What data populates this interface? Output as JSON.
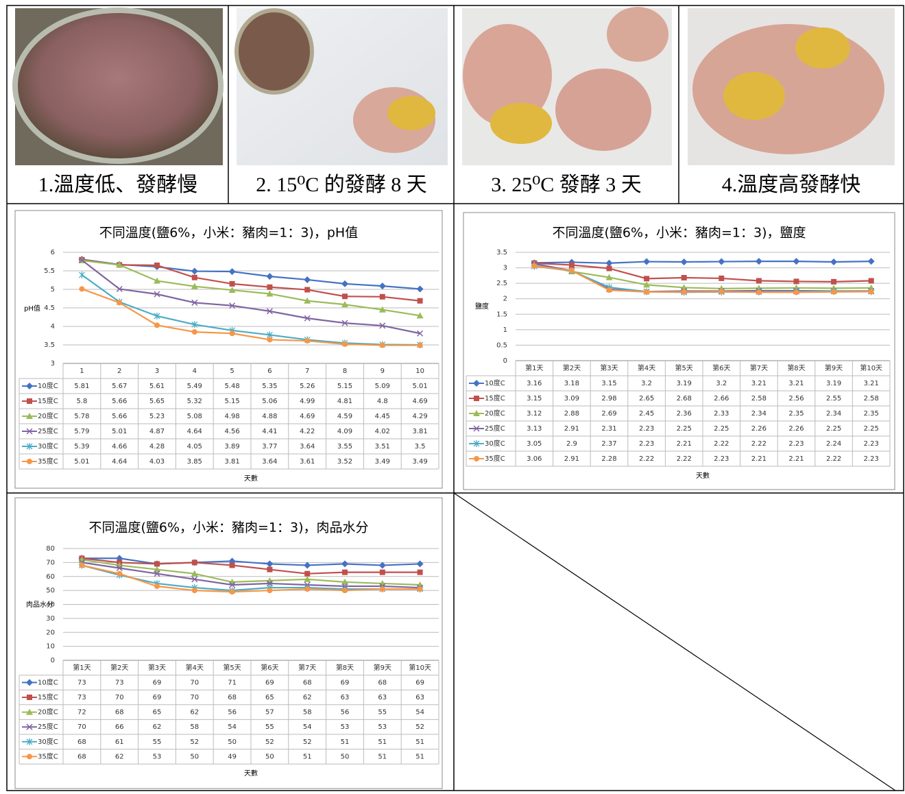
{
  "photos": [
    {
      "caption": "1.溫度低、發酵慢"
    },
    {
      "caption": "2. 15⁰C 的發酵 8 天"
    },
    {
      "caption": "3. 25⁰C 發酵 3 天"
    },
    {
      "caption": "4.溫度高發酵快"
    }
  ],
  "chart_data": [
    {
      "type": "line",
      "title": "不同溫度(鹽6%，小米：豬肉=1：3)，pH值",
      "y_label": "pH值",
      "x_label": "天數",
      "categories": [
        "1",
        "2",
        "3",
        "4",
        "5",
        "6",
        "7",
        "8",
        "9",
        "10"
      ],
      "ylim": [
        3,
        6
      ],
      "yticks": [
        3,
        3.5,
        4,
        4.5,
        5,
        5.5,
        6
      ],
      "grid": true,
      "series": [
        {
          "name": "10度C",
          "color": "#4472c4",
          "marker": "diamond",
          "values": [
            5.81,
            5.67,
            5.61,
            5.49,
            5.48,
            5.35,
            5.26,
            5.15,
            5.09,
            5.01
          ]
        },
        {
          "name": "15度C",
          "color": "#c0504d",
          "marker": "square",
          "values": [
            5.8,
            5.66,
            5.65,
            5.32,
            5.15,
            5.06,
            4.99,
            4.81,
            4.8,
            4.69
          ]
        },
        {
          "name": "20度C",
          "color": "#9bbb59",
          "marker": "triangle",
          "values": [
            5.78,
            5.66,
            5.23,
            5.08,
            4.98,
            4.88,
            4.69,
            4.59,
            4.45,
            4.29
          ]
        },
        {
          "name": "25度C",
          "color": "#8064a2",
          "marker": "x",
          "values": [
            5.79,
            5.01,
            4.87,
            4.64,
            4.56,
            4.41,
            4.22,
            4.09,
            4.02,
            3.81
          ]
        },
        {
          "name": "30度C",
          "color": "#4bacc6",
          "marker": "asterisk",
          "values": [
            5.39,
            4.66,
            4.28,
            4.05,
            3.89,
            3.77,
            3.64,
            3.55,
            3.51,
            3.5
          ]
        },
        {
          "name": "35度C",
          "color": "#f79646",
          "marker": "circle",
          "values": [
            5.01,
            4.64,
            4.03,
            3.85,
            3.81,
            3.64,
            3.61,
            3.52,
            3.49,
            3.49
          ]
        }
      ]
    },
    {
      "type": "line",
      "title": "不同溫度(鹽6%，小米：豬肉=1：3)，鹽度",
      "y_label": "鹽度",
      "x_label": "天數",
      "categories": [
        "第1天",
        "第2天",
        "第3天",
        "第4天",
        "第5天",
        "第6天",
        "第7天",
        "第8天",
        "第9天",
        "第10天"
      ],
      "ylim": [
        0,
        3.5
      ],
      "yticks": [
        0,
        0.5,
        1,
        1.5,
        2,
        2.5,
        3,
        3.5
      ],
      "grid": true,
      "series": [
        {
          "name": "10度C",
          "color": "#4472c4",
          "marker": "diamond",
          "values": [
            3.16,
            3.18,
            3.15,
            3.2,
            3.19,
            3.2,
            3.21,
            3.21,
            3.19,
            3.21
          ]
        },
        {
          "name": "15度C",
          "color": "#c0504d",
          "marker": "square",
          "values": [
            3.15,
            3.09,
            2.98,
            2.65,
            2.68,
            2.66,
            2.58,
            2.56,
            2.55,
            2.58
          ]
        },
        {
          "name": "20度C",
          "color": "#9bbb59",
          "marker": "triangle",
          "values": [
            3.12,
            2.88,
            2.69,
            2.45,
            2.36,
            2.33,
            2.34,
            2.35,
            2.34,
            2.35
          ]
        },
        {
          "name": "25度C",
          "color": "#8064a2",
          "marker": "x",
          "values": [
            3.13,
            2.91,
            2.31,
            2.23,
            2.25,
            2.25,
            2.26,
            2.26,
            2.25,
            2.25
          ]
        },
        {
          "name": "30度C",
          "color": "#4bacc6",
          "marker": "asterisk",
          "values": [
            3.05,
            2.9,
            2.37,
            2.23,
            2.21,
            2.22,
            2.22,
            2.23,
            2.24,
            2.23
          ]
        },
        {
          "name": "35度C",
          "color": "#f79646",
          "marker": "circle",
          "values": [
            3.06,
            2.91,
            2.28,
            2.22,
            2.22,
            2.23,
            2.21,
            2.21,
            2.22,
            2.23
          ]
        }
      ]
    },
    {
      "type": "line",
      "title": "不同溫度(鹽6%，小米：豬肉=1：3)，肉品水分",
      "y_label": "肉品水分",
      "x_label": "天數",
      "categories": [
        "第1天",
        "第2天",
        "第3天",
        "第4天",
        "第5天",
        "第6天",
        "第7天",
        "第8天",
        "第9天",
        "第10天"
      ],
      "ylim": [
        0,
        80
      ],
      "yticks": [
        0,
        10,
        20,
        30,
        40,
        50,
        60,
        70,
        80
      ],
      "grid": true,
      "series": [
        {
          "name": "10度C",
          "color": "#4472c4",
          "marker": "diamond",
          "values": [
            73,
            73,
            69,
            70,
            71,
            69,
            68,
            69,
            68,
            69
          ]
        },
        {
          "name": "15度C",
          "color": "#c0504d",
          "marker": "square",
          "values": [
            73,
            70,
            69,
            70,
            68,
            65,
            62,
            63,
            63,
            63
          ]
        },
        {
          "name": "20度C",
          "color": "#9bbb59",
          "marker": "triangle",
          "values": [
            72,
            68,
            65,
            62,
            56,
            57,
            58,
            56,
            55,
            54
          ]
        },
        {
          "name": "25度C",
          "color": "#8064a2",
          "marker": "x",
          "values": [
            70,
            66,
            62,
            58,
            54,
            55,
            54,
            53,
            53,
            52
          ]
        },
        {
          "name": "30度C",
          "color": "#4bacc6",
          "marker": "asterisk",
          "values": [
            68,
            61,
            55,
            52,
            50,
            52,
            52,
            51,
            51,
            51
          ]
        },
        {
          "name": "35度C",
          "color": "#f79646",
          "marker": "circle",
          "values": [
            68,
            62,
            53,
            50,
            49,
            50,
            51,
            50,
            51,
            51
          ]
        }
      ]
    }
  ]
}
